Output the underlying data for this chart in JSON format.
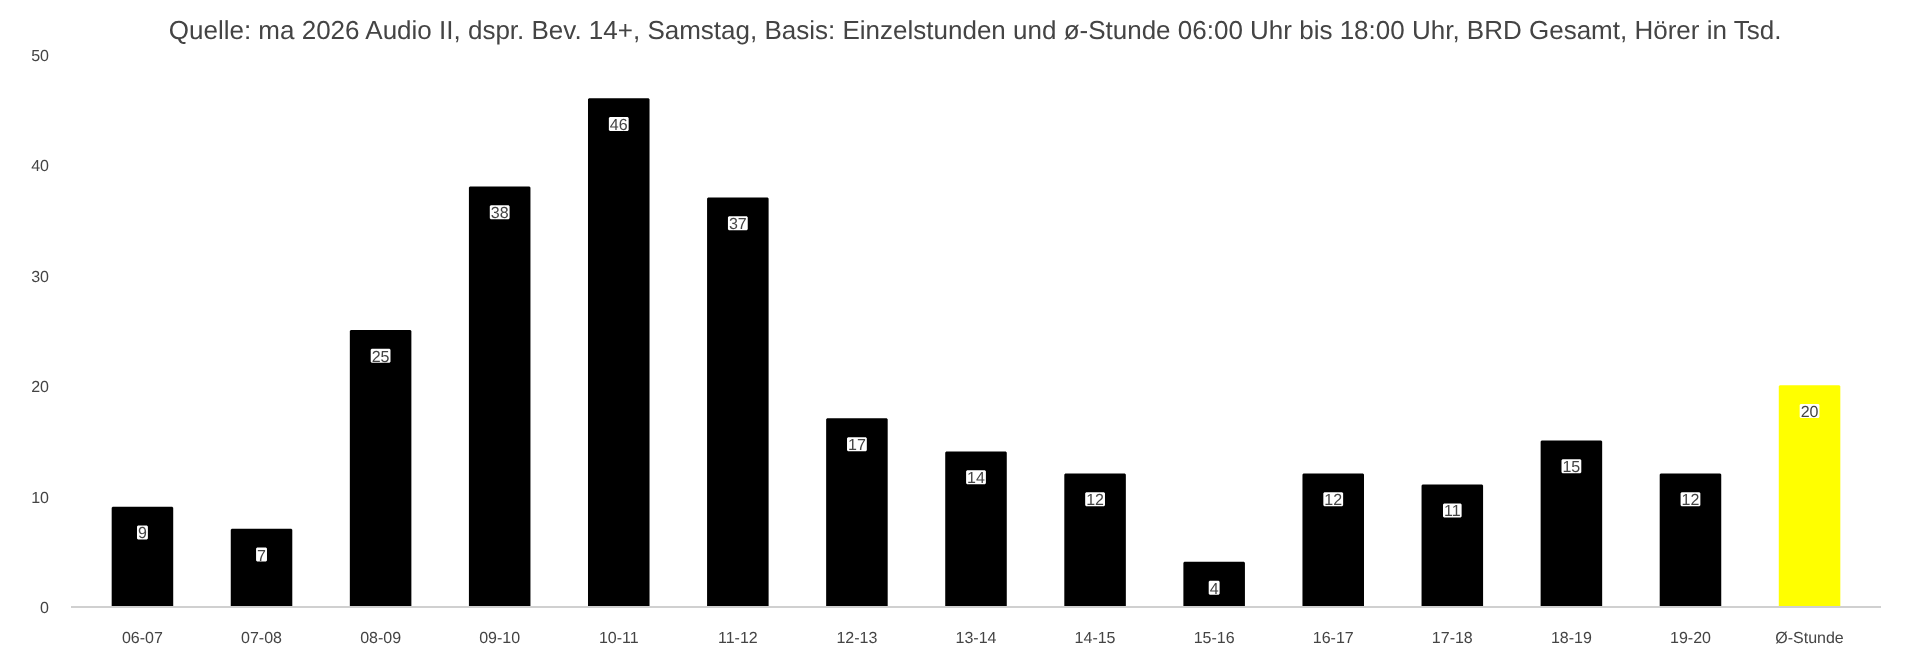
{
  "chart_data": {
    "type": "bar",
    "title": "Quelle: ma 2026 Audio II, dspr. Bev. 14+, Samstag, Basis: Einzelstunden und ø-Stunde 06:00 Uhr bis 18:00 Uhr, BRD Gesamt, Hörer in Tsd.",
    "categories": [
      "06-07",
      "07-08",
      "08-09",
      "09-10",
      "10-11",
      "11-12",
      "12-13",
      "13-14",
      "14-15",
      "15-16",
      "16-17",
      "17-18",
      "18-19",
      "19-20",
      "Ø-Stunde"
    ],
    "values": [
      9,
      7,
      25,
      38,
      46,
      37,
      17,
      14,
      12,
      4,
      12,
      11,
      15,
      12,
      20
    ],
    "colors": [
      "#000000",
      "#000000",
      "#000000",
      "#000000",
      "#000000",
      "#000000",
      "#000000",
      "#000000",
      "#000000",
      "#000000",
      "#000000",
      "#000000",
      "#000000",
      "#000000",
      "#ffff00"
    ],
    "ylim": [
      0,
      50
    ],
    "yticks": [
      0,
      10,
      20,
      30,
      40,
      50
    ],
    "grid": false,
    "data_labels": true
  }
}
